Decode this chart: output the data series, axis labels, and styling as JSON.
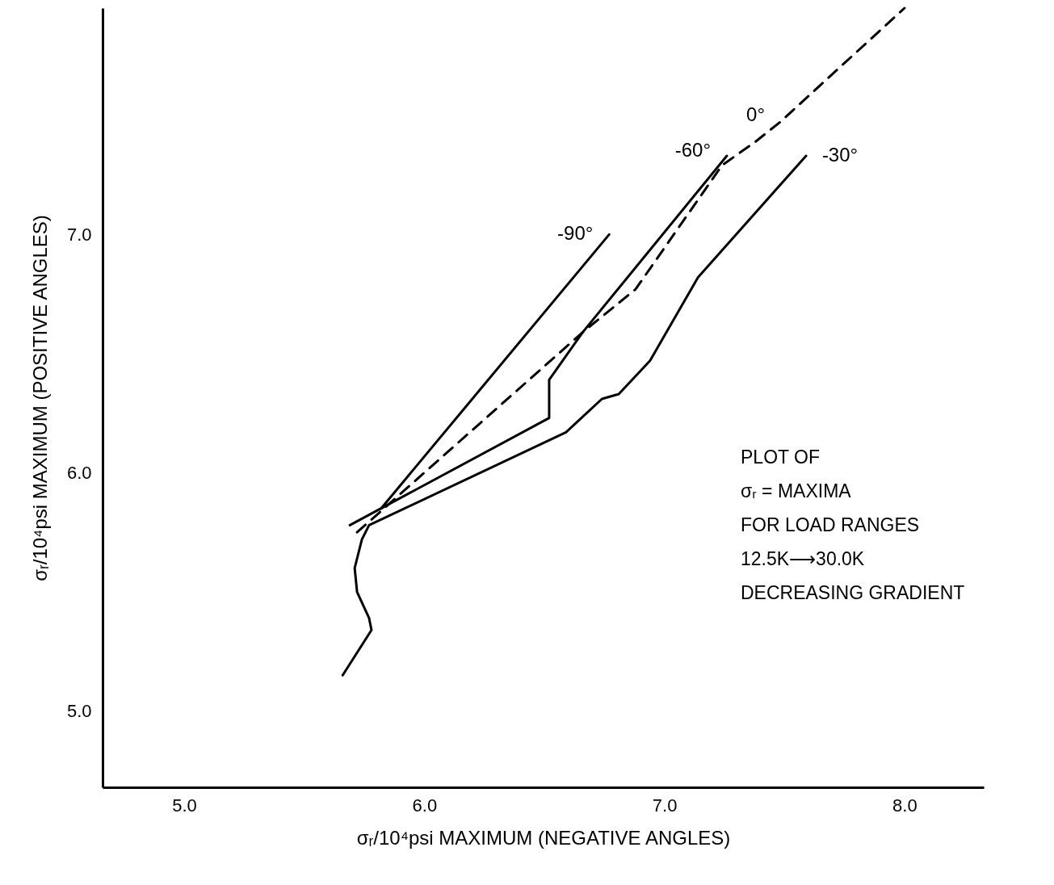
{
  "chart_data": {
    "type": "line",
    "xlabel": "σᵣ/10⁴psi MAXIMUM (NEGATIVE ANGLES)",
    "ylabel": "σᵣ/10⁴psi MAXIMUM (POSITIVE ANGLES)",
    "xlim": [
      4.66,
      8.33
    ],
    "ylim": [
      4.68,
      7.95
    ],
    "xticks": [
      {
        "value": 5,
        "label": "5.0"
      },
      {
        "value": 6,
        "label": "6.0"
      },
      {
        "value": 7,
        "label": "7.0"
      },
      {
        "value": 8,
        "label": "8.0"
      }
    ],
    "yticks": [
      {
        "value": 5,
        "label": "5.0"
      },
      {
        "value": 6,
        "label": "6.0"
      },
      {
        "value": 7,
        "label": "7.0"
      }
    ],
    "grid": false,
    "series": [
      {
        "name": "-90°",
        "color": "#000000",
        "line_style": "solid",
        "x": [
          5.82,
          6.77
        ],
        "values": [
          5.85,
          7.0
        ]
      },
      {
        "name": "-60°",
        "color": "#000000",
        "line_style": "solid",
        "x": [
          5.69,
          6.52,
          6.52,
          6.66,
          7.26
        ],
        "values": [
          5.78,
          6.23,
          6.39,
          6.59,
          7.33
        ]
      },
      {
        "name": "-30°",
        "color": "#000000",
        "line_style": "solid",
        "x": [
          5.66,
          5.78,
          5.77,
          5.72,
          5.71,
          5.74,
          5.77,
          6.59,
          6.74,
          6.81,
          6.94,
          7.14,
          7.59
        ],
        "values": [
          5.15,
          5.34,
          5.39,
          5.5,
          5.6,
          5.72,
          5.78,
          6.17,
          6.31,
          6.33,
          6.47,
          6.82,
          7.33
        ]
      },
      {
        "name": "0°",
        "color": "#000000",
        "line_style": "dashed",
        "x": [
          5.72,
          6.66,
          6.88,
          7.24,
          7.38,
          7.48,
          8.0
        ],
        "values": [
          5.75,
          6.59,
          6.77,
          7.29,
          7.39,
          7.47,
          7.95
        ]
      }
    ],
    "annotations": [
      "PLOT OF",
      "σᵣ = MAXIMA",
      "FOR LOAD RANGES",
      "12.5K⟶30.0K",
      "DECREASING GRADIENT"
    ]
  }
}
